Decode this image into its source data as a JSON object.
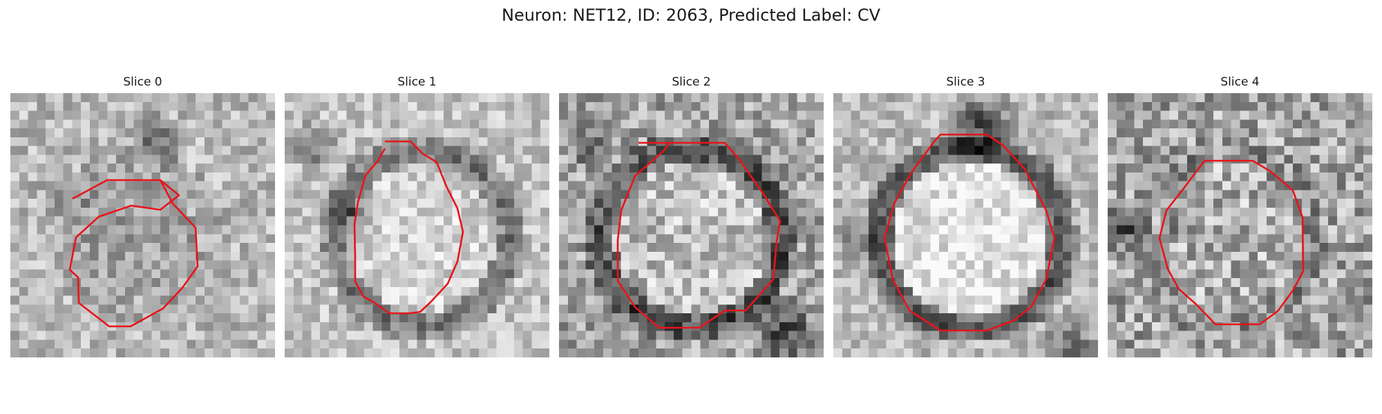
{
  "figure": {
    "title": "Neuron: NET12, ID: 2063, Predicted Label: CV"
  },
  "panels": [
    {
      "title": "Slice 0"
    },
    {
      "title": "Slice 1"
    },
    {
      "title": "Slice 2"
    },
    {
      "title": "Slice 3"
    },
    {
      "title": "Slice 4"
    }
  ],
  "colors": {
    "contour": "#e8141a",
    "colormap": "grayscale"
  }
}
